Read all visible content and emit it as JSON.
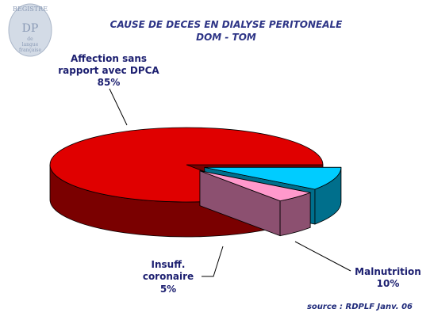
{
  "logo": {
    "ring_text": "REGISTRE",
    "initials": "DP",
    "line1": "de",
    "line2": "langue",
    "line3": "française"
  },
  "chart_data": {
    "type": "pie",
    "title": "CAUSE DE DECES EN DIALYSE PERITONEALE",
    "subtitle": "DOM - TOM",
    "source": "source : RDPLF Janv. 06",
    "slices": [
      {
        "label_lines": [
          "Affection sans",
          "rapport avec DPCA"
        ],
        "value": 85,
        "value_label": "85%",
        "top_color": "#e00000",
        "side_color": "#7a0000",
        "exploded": false
      },
      {
        "label_lines": [
          "Malnutrition"
        ],
        "value": 10,
        "value_label": "10%",
        "top_color": "#00ccff",
        "side_color": "#006f8c",
        "exploded": true
      },
      {
        "label_lines": [
          "Insuff.",
          "coronaire"
        ],
        "value": 5,
        "value_label": "5%",
        "top_color": "#ff99cc",
        "side_color": "#8c5070",
        "exploded": true
      }
    ],
    "style": "3d-exploded",
    "legend": "none"
  }
}
